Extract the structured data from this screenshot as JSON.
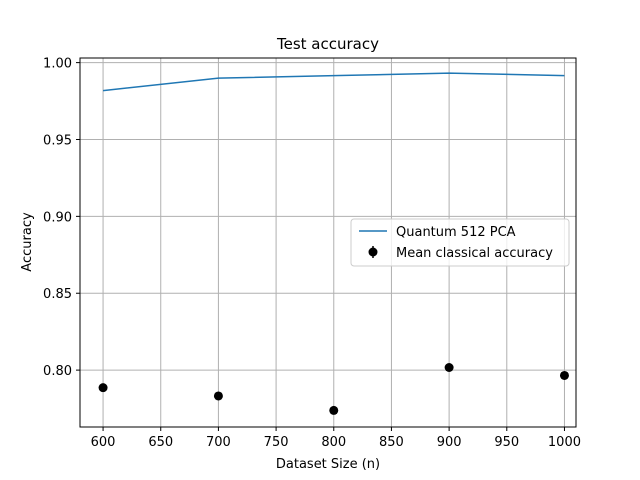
{
  "chart_data": {
    "type": "line",
    "title": "Test accuracy",
    "xlabel": "Dataset Size (n)",
    "ylabel": "Accuracy",
    "xlim": [
      580,
      1010
    ],
    "ylim": [
      0.763,
      1.003
    ],
    "xticks": [
      600,
      650,
      700,
      750,
      800,
      850,
      900,
      950,
      1000
    ],
    "xtick_labels": [
      "600",
      "650",
      "700",
      "750",
      "800",
      "850",
      "900",
      "950",
      "1000"
    ],
    "yticks": [
      0.8,
      0.85,
      0.9,
      0.95,
      1.0
    ],
    "ytick_labels": [
      "0.80",
      "0.85",
      "0.90",
      "0.95",
      "1.00"
    ],
    "grid": true,
    "legend_position": "center-right",
    "series": [
      {
        "name": "Quantum 512 PCA",
        "kind": "line",
        "color": "#1f77b4",
        "x": [
          600,
          700,
          800,
          900,
          1000
        ],
        "y": [
          0.9818,
          0.9899,
          0.9915,
          0.9932,
          0.9915
        ]
      },
      {
        "name": "Mean classical accuracy",
        "kind": "errorbar-points",
        "color": "#000000",
        "x": [
          600,
          700,
          800,
          900,
          1000
        ],
        "y": [
          0.7886,
          0.7832,
          0.7738,
          0.8017,
          0.7965
        ]
      }
    ]
  }
}
